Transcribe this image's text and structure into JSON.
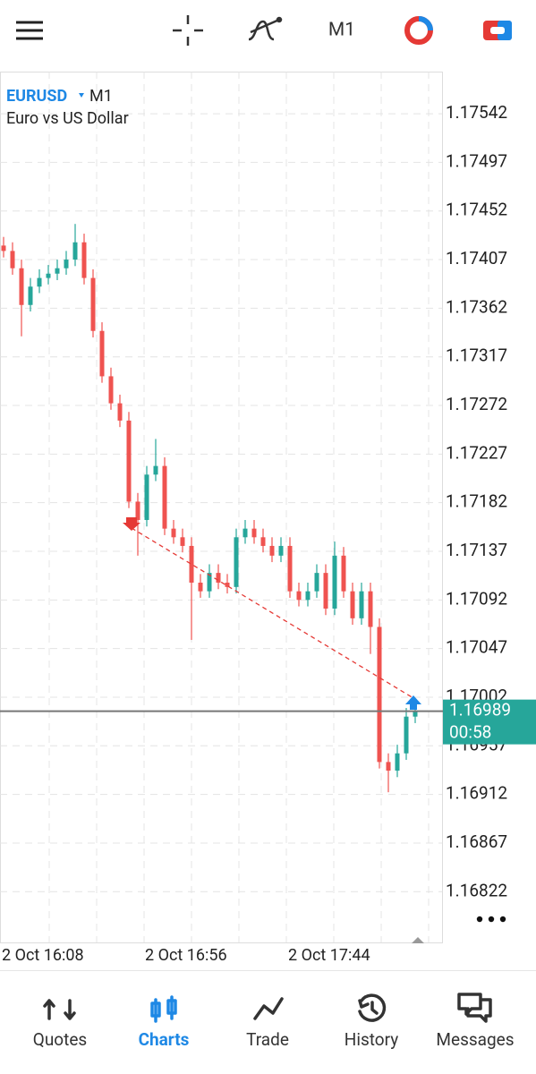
{
  "toolbar": {
    "timeframe": "M1"
  },
  "chart_data": {
    "type": "candlestick",
    "symbol": "EURUSD",
    "timeframe": "M1",
    "description": "Euro vs US Dollar",
    "x": [
      "2 Oct 16:08",
      null,
      null,
      null,
      null,
      null,
      null,
      null,
      null,
      null,
      null,
      null,
      null,
      null,
      null,
      null,
      "2 Oct 16:56",
      null,
      null,
      null,
      null,
      null,
      null,
      null,
      null,
      null,
      null,
      null,
      null,
      null,
      null,
      null,
      "2 Oct 17:44",
      null,
      null,
      null,
      null,
      null,
      null,
      null,
      null,
      null,
      null,
      null,
      null,
      null,
      null
    ],
    "open": [
      1.1742,
      1.17415,
      1.17399,
      1.17365,
      1.17382,
      1.1739,
      1.17394,
      1.17399,
      1.17407,
      1.17423,
      1.1739,
      1.17341,
      1.17299,
      1.17274,
      1.17258,
      1.17183,
      1.17166,
      1.17208,
      1.17216,
      1.17158,
      1.1715,
      1.17142,
      1.17108,
      1.171,
      1.17117,
      1.17108,
      1.17104,
      1.1715,
      1.17158,
      1.1715,
      1.17142,
      1.17133,
      1.17142,
      1.171,
      1.17092,
      1.171,
      1.17117,
      1.17084,
      1.17133,
      1.171,
      1.17075,
      1.171,
      1.17067,
      1.16942,
      1.16934,
      1.1695,
      1.16984
    ],
    "high": [
      1.17428,
      1.17423,
      1.17407,
      1.1739,
      1.17398,
      1.17402,
      1.17407,
      1.17415,
      1.1744,
      1.17431,
      1.17398,
      1.17349,
      1.17307,
      1.17282,
      1.17266,
      1.17191,
      1.17216,
      1.17241,
      1.17224,
      1.17166,
      1.17158,
      1.1715,
      1.17116,
      1.17125,
      1.17125,
      1.17116,
      1.17158,
      1.17166,
      1.17166,
      1.17158,
      1.1715,
      1.1715,
      1.1715,
      1.17108,
      1.17108,
      1.17125,
      1.17125,
      1.17146,
      1.17141,
      1.17108,
      1.17108,
      1.17108,
      1.17075,
      1.1695,
      1.16958,
      1.16992,
      1.16997
    ],
    "low": [
      1.17409,
      1.17393,
      1.17336,
      1.17359,
      1.17376,
      1.17384,
      1.17388,
      1.17393,
      1.17401,
      1.17384,
      1.17335,
      1.17293,
      1.17268,
      1.17252,
      1.17177,
      1.17133,
      1.1716,
      1.17202,
      1.17152,
      1.17144,
      1.17136,
      1.17055,
      1.17094,
      1.17094,
      1.17102,
      1.17098,
      1.17098,
      1.17144,
      1.17144,
      1.17136,
      1.17127,
      1.17127,
      1.17094,
      1.17086,
      1.17086,
      1.17094,
      1.17078,
      1.17078,
      1.17094,
      1.17069,
      1.17069,
      1.17042,
      1.16936,
      1.16914,
      1.16928,
      1.16944,
      1.16978
    ],
    "close": [
      1.17415,
      1.17399,
      1.17365,
      1.17382,
      1.1739,
      1.17394,
      1.17399,
      1.17407,
      1.17423,
      1.1739,
      1.17341,
      1.17299,
      1.17274,
      1.17258,
      1.17183,
      1.17166,
      1.17208,
      1.17216,
      1.17158,
      1.1715,
      1.17142,
      1.17108,
      1.171,
      1.17117,
      1.17108,
      1.17104,
      1.1715,
      1.17158,
      1.1715,
      1.17142,
      1.17133,
      1.17142,
      1.171,
      1.17092,
      1.171,
      1.17117,
      1.17084,
      1.17133,
      1.171,
      1.17075,
      1.171,
      1.17067,
      1.16942,
      1.16934,
      1.1695,
      1.16984,
      1.16989
    ],
    "up_color": "#26a69a",
    "down_color": "#ef5350",
    "ylim": [
      1.16775,
      1.17581
    ],
    "yticks": [
      1.17542,
      1.17497,
      1.17452,
      1.17407,
      1.17362,
      1.17317,
      1.17272,
      1.17227,
      1.17182,
      1.17137,
      1.17092,
      1.17047,
      1.17002,
      1.16957,
      1.16912,
      1.16867,
      1.16822
    ],
    "grid": true,
    "last_price": 1.16989,
    "countdown": "00:58"
  },
  "nav": {
    "items": [
      "Quotes",
      "Charts",
      "Trade",
      "History",
      "Messages"
    ],
    "active": 1
  }
}
